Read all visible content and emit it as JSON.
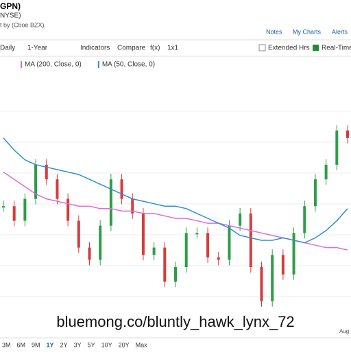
{
  "header": {
    "symbol": "GPN)",
    "exchange": "NYSE)",
    "source": "t by (Cboe BZX)"
  },
  "links": [
    "Notes",
    "My Charts",
    "Alerts"
  ],
  "toolbar": [
    "Daily",
    "1-Year",
    "Indicators",
    "Compare",
    "f(x)",
    "1x1"
  ],
  "extended": "Extended Hrs",
  "realtime": "Real-Time",
  "ranges": [
    "3M",
    "6M",
    "9M",
    "1Y",
    "2Y",
    "3Y",
    "5Y",
    "10Y",
    "20Y",
    "Max"
  ],
  "x_label": "Aug",
  "watermark": "bluemong.co/bluntly_hawk_lynx_72",
  "chart_data": {
    "type": "line",
    "values": [
      45,
      39,
      48,
      62,
      56,
      48,
      39,
      28,
      23,
      37,
      56,
      48,
      42,
      25,
      28,
      14,
      20,
      34,
      34,
      24,
      23,
      37,
      42,
      20,
      6,
      25,
      17,
      34,
      45,
      56,
      62,
      76,
      73
    ],
    "up_color": "#2e9d48",
    "down_color": "#d63b3b",
    "series": [
      {
        "name": "MA (200, Close, 0)",
        "color": "#e06bd8",
        "values": [
          59,
          56,
          53,
          50,
          48,
          47,
          46,
          45,
          45,
          44,
          44,
          43,
          43,
          42,
          42,
          41,
          40,
          40,
          39,
          38,
          38,
          37,
          36,
          35,
          34,
          33,
          32,
          31,
          30,
          29,
          28,
          28,
          27
        ]
      },
      {
        "name": "MA (50, Close, 0)",
        "color": "#2b8fd6",
        "values": [
          73,
          68,
          64,
          62,
          61,
          60,
          59,
          58,
          56,
          54,
          52,
          50,
          48,
          47,
          46,
          45,
          45,
          44,
          42,
          40,
          38,
          36,
          33,
          32,
          31,
          31,
          32,
          31,
          30,
          32,
          35,
          39,
          44
        ]
      }
    ],
    "ylim": [
      0,
      100
    ]
  }
}
